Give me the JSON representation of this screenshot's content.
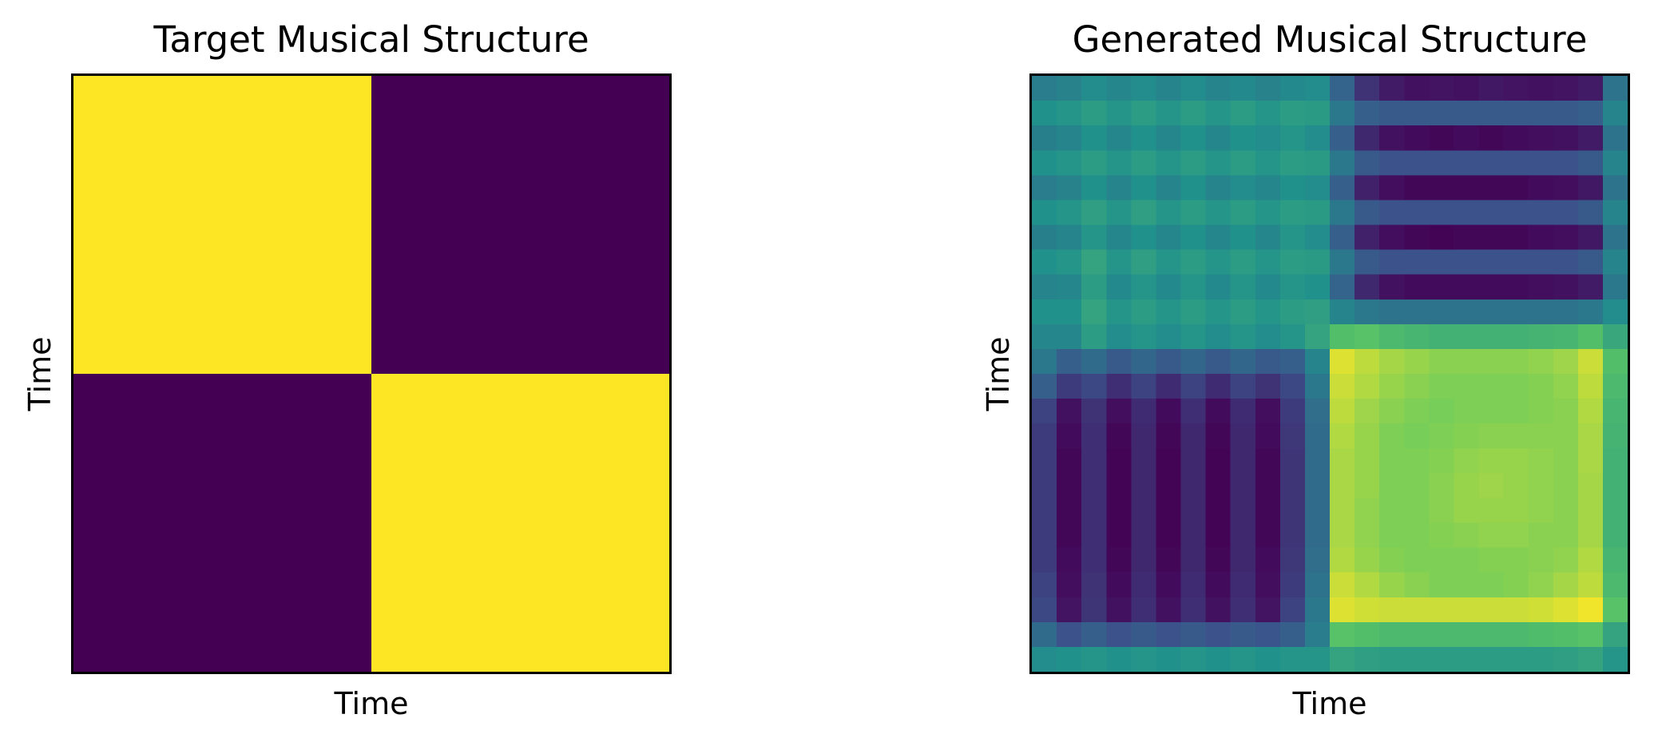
{
  "chart_data": [
    {
      "type": "heatmap",
      "title": "Target Musical Structure",
      "xlabel": "Time",
      "ylabel": "Time",
      "grid": false,
      "colormap": [
        "#440154",
        "#3b528b",
        "#21918c",
        "#5ec962",
        "#fde725"
      ],
      "matrix": [
        [
          1,
          0
        ],
        [
          0,
          1
        ]
      ],
      "value_range": [
        0,
        1
      ]
    },
    {
      "type": "heatmap",
      "title": "Generated Musical Structure",
      "xlabel": "Time",
      "ylabel": "Time",
      "grid": false,
      "colormap": [
        "#440154",
        "#3b528b",
        "#21918c",
        "#5ec962",
        "#fde725"
      ],
      "value_range": [
        0,
        1
      ],
      "matrix": [
        [
          0.42,
          0.44,
          0.48,
          0.46,
          0.48,
          0.45,
          0.48,
          0.45,
          0.47,
          0.44,
          0.47,
          0.48,
          0.32,
          0.15,
          0.08,
          0.05,
          0.06,
          0.05,
          0.07,
          0.06,
          0.05,
          0.06,
          0.08,
          0.38
        ],
        [
          0.5,
          0.52,
          0.55,
          0.52,
          0.55,
          0.52,
          0.55,
          0.52,
          0.55,
          0.52,
          0.55,
          0.54,
          0.4,
          0.3,
          0.28,
          0.28,
          0.28,
          0.28,
          0.28,
          0.28,
          0.28,
          0.28,
          0.3,
          0.45
        ],
        [
          0.43,
          0.45,
          0.5,
          0.46,
          0.5,
          0.46,
          0.5,
          0.46,
          0.5,
          0.48,
          0.52,
          0.48,
          0.3,
          0.12,
          0.05,
          0.03,
          0.02,
          0.03,
          0.02,
          0.03,
          0.04,
          0.05,
          0.08,
          0.38
        ],
        [
          0.5,
          0.52,
          0.55,
          0.52,
          0.55,
          0.52,
          0.55,
          0.52,
          0.55,
          0.52,
          0.55,
          0.54,
          0.4,
          0.28,
          0.25,
          0.25,
          0.25,
          0.25,
          0.25,
          0.25,
          0.25,
          0.25,
          0.28,
          0.45
        ],
        [
          0.42,
          0.44,
          0.5,
          0.45,
          0.5,
          0.45,
          0.5,
          0.45,
          0.48,
          0.46,
          0.5,
          0.48,
          0.3,
          0.1,
          0.04,
          0.02,
          0.02,
          0.02,
          0.02,
          0.02,
          0.03,
          0.04,
          0.07,
          0.38
        ],
        [
          0.5,
          0.52,
          0.56,
          0.52,
          0.56,
          0.52,
          0.55,
          0.52,
          0.55,
          0.52,
          0.55,
          0.54,
          0.4,
          0.28,
          0.25,
          0.25,
          0.25,
          0.25,
          0.25,
          0.25,
          0.25,
          0.25,
          0.28,
          0.45
        ],
        [
          0.43,
          0.45,
          0.52,
          0.46,
          0.5,
          0.46,
          0.5,
          0.46,
          0.5,
          0.46,
          0.52,
          0.48,
          0.3,
          0.1,
          0.04,
          0.02,
          0.01,
          0.02,
          0.02,
          0.02,
          0.03,
          0.04,
          0.07,
          0.38
        ],
        [
          0.5,
          0.52,
          0.58,
          0.52,
          0.56,
          0.52,
          0.55,
          0.52,
          0.55,
          0.52,
          0.55,
          0.54,
          0.4,
          0.28,
          0.25,
          0.25,
          0.25,
          0.25,
          0.25,
          0.25,
          0.25,
          0.25,
          0.28,
          0.45
        ],
        [
          0.45,
          0.46,
          0.55,
          0.47,
          0.52,
          0.47,
          0.52,
          0.47,
          0.52,
          0.47,
          0.52,
          0.5,
          0.32,
          0.12,
          0.05,
          0.03,
          0.03,
          0.03,
          0.03,
          0.03,
          0.04,
          0.05,
          0.08,
          0.4
        ],
        [
          0.5,
          0.5,
          0.58,
          0.52,
          0.55,
          0.52,
          0.55,
          0.52,
          0.55,
          0.52,
          0.55,
          0.56,
          0.45,
          0.4,
          0.38,
          0.38,
          0.38,
          0.38,
          0.38,
          0.38,
          0.38,
          0.38,
          0.4,
          0.48
        ],
        [
          0.46,
          0.46,
          0.55,
          0.48,
          0.52,
          0.48,
          0.52,
          0.48,
          0.52,
          0.48,
          0.52,
          0.58,
          0.7,
          0.72,
          0.68,
          0.66,
          0.64,
          0.64,
          0.64,
          0.64,
          0.65,
          0.66,
          0.7,
          0.6
        ],
        [
          0.4,
          0.3,
          0.35,
          0.28,
          0.33,
          0.28,
          0.33,
          0.28,
          0.33,
          0.28,
          0.3,
          0.45,
          0.95,
          0.9,
          0.86,
          0.84,
          0.82,
          0.82,
          0.82,
          0.82,
          0.83,
          0.85,
          0.92,
          0.7
        ],
        [
          0.3,
          0.18,
          0.22,
          0.14,
          0.2,
          0.13,
          0.2,
          0.13,
          0.2,
          0.15,
          0.22,
          0.4,
          0.92,
          0.88,
          0.84,
          0.82,
          0.8,
          0.8,
          0.8,
          0.8,
          0.81,
          0.83,
          0.9,
          0.68
        ],
        [
          0.2,
          0.05,
          0.15,
          0.04,
          0.13,
          0.03,
          0.14,
          0.03,
          0.13,
          0.04,
          0.18,
          0.36,
          0.9,
          0.85,
          0.82,
          0.8,
          0.79,
          0.8,
          0.8,
          0.8,
          0.81,
          0.82,
          0.88,
          0.66
        ],
        [
          0.18,
          0.03,
          0.14,
          0.02,
          0.12,
          0.02,
          0.12,
          0.02,
          0.12,
          0.03,
          0.17,
          0.35,
          0.88,
          0.84,
          0.8,
          0.79,
          0.8,
          0.81,
          0.82,
          0.82,
          0.82,
          0.82,
          0.87,
          0.65
        ],
        [
          0.18,
          0.02,
          0.14,
          0.01,
          0.12,
          0.01,
          0.12,
          0.01,
          0.12,
          0.02,
          0.16,
          0.35,
          0.87,
          0.84,
          0.8,
          0.8,
          0.81,
          0.83,
          0.84,
          0.84,
          0.83,
          0.82,
          0.87,
          0.64
        ],
        [
          0.18,
          0.02,
          0.14,
          0.01,
          0.12,
          0.01,
          0.12,
          0.01,
          0.12,
          0.02,
          0.16,
          0.35,
          0.87,
          0.84,
          0.8,
          0.8,
          0.82,
          0.84,
          0.85,
          0.84,
          0.83,
          0.82,
          0.86,
          0.64
        ],
        [
          0.18,
          0.02,
          0.14,
          0.01,
          0.12,
          0.01,
          0.12,
          0.01,
          0.12,
          0.02,
          0.16,
          0.35,
          0.87,
          0.83,
          0.8,
          0.8,
          0.82,
          0.84,
          0.84,
          0.84,
          0.83,
          0.82,
          0.86,
          0.64
        ],
        [
          0.18,
          0.02,
          0.14,
          0.01,
          0.12,
          0.01,
          0.12,
          0.01,
          0.12,
          0.02,
          0.16,
          0.35,
          0.87,
          0.83,
          0.8,
          0.8,
          0.81,
          0.82,
          0.83,
          0.83,
          0.82,
          0.82,
          0.86,
          0.64
        ],
        [
          0.18,
          0.03,
          0.14,
          0.02,
          0.12,
          0.02,
          0.12,
          0.02,
          0.12,
          0.03,
          0.17,
          0.36,
          0.88,
          0.84,
          0.81,
          0.8,
          0.8,
          0.8,
          0.81,
          0.81,
          0.82,
          0.83,
          0.88,
          0.66
        ],
        [
          0.2,
          0.04,
          0.15,
          0.03,
          0.13,
          0.03,
          0.13,
          0.03,
          0.13,
          0.04,
          0.18,
          0.38,
          0.92,
          0.88,
          0.84,
          0.82,
          0.8,
          0.8,
          0.8,
          0.81,
          0.83,
          0.86,
          0.9,
          0.68
        ],
        [
          0.22,
          0.06,
          0.16,
          0.05,
          0.14,
          0.05,
          0.14,
          0.05,
          0.14,
          0.06,
          0.2,
          0.4,
          0.95,
          0.93,
          0.92,
          0.92,
          0.92,
          0.92,
          0.92,
          0.92,
          0.93,
          0.95,
          0.98,
          0.72
        ],
        [
          0.35,
          0.25,
          0.3,
          0.25,
          0.28,
          0.25,
          0.28,
          0.25,
          0.28,
          0.26,
          0.3,
          0.42,
          0.72,
          0.7,
          0.68,
          0.68,
          0.68,
          0.68,
          0.68,
          0.68,
          0.69,
          0.7,
          0.72,
          0.58
        ],
        [
          0.48,
          0.5,
          0.52,
          0.5,
          0.52,
          0.5,
          0.52,
          0.5,
          0.52,
          0.5,
          0.52,
          0.52,
          0.58,
          0.56,
          0.55,
          0.55,
          0.55,
          0.55,
          0.55,
          0.55,
          0.55,
          0.56,
          0.58,
          0.52
        ]
      ]
    }
  ]
}
